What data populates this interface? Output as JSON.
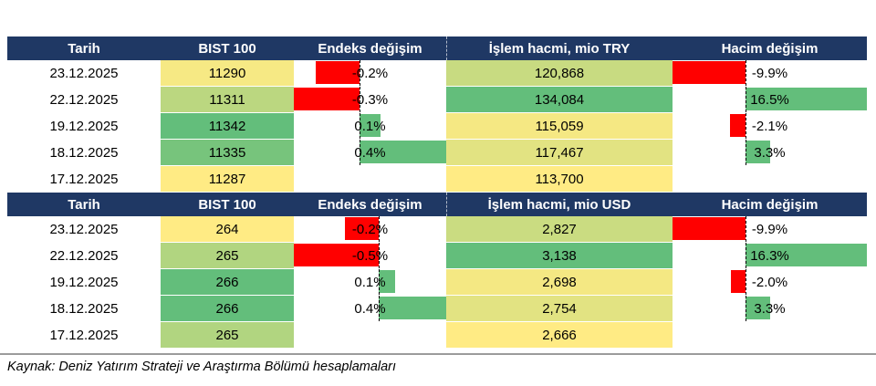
{
  "page": {
    "source_note": "Kaynak: Deniz Yatırım Strateji ve Araştırma Bölümü hesaplamaları"
  },
  "colors": {
    "header_bg": "#1F3864",
    "header_text": "#FFFFFF",
    "negative_bar": "#FF0000",
    "positive_bar": "#63BE7B",
    "scale_min": "#FFEB84",
    "scale_max": "#63BE7B",
    "axis_line": "#000000"
  },
  "chart_data": [
    {
      "type": "table",
      "columns": [
        "Tarih",
        "BIST 100",
        "Endeks değişim",
        "İşlem hacmi, mio TRY",
        "Hacim değişim"
      ],
      "conditional_formatting": {
        "bist": "color-scale yellow-to-green",
        "endeks": "data-bars red-negative green-positive with dashed zero axis",
        "hacim": "color-scale yellow-to-green",
        "hdeg": "data-bars red-negative green-positive with dashed zero axis"
      },
      "rows": [
        {
          "date": "23.12.2025",
          "bist": 11290,
          "bist_label": "11290",
          "endeks": -0.2,
          "endeks_label": "-0.2%",
          "hacim": 120868,
          "hacim_label": "120,868",
          "hdeg": -9.9,
          "hdeg_label": "-9.9%"
        },
        {
          "date": "22.12.2025",
          "bist": 11311,
          "bist_label": "11311",
          "endeks": -0.3,
          "endeks_label": "-0.3%",
          "hacim": 134084,
          "hacim_label": "134,084",
          "hdeg": 16.5,
          "hdeg_label": "16.5%"
        },
        {
          "date": "19.12.2025",
          "bist": 11342,
          "bist_label": "11342",
          "endeks": 0.1,
          "endeks_label": "0.1%",
          "hacim": 115059,
          "hacim_label": "115,059",
          "hdeg": -2.1,
          "hdeg_label": "-2.1%"
        },
        {
          "date": "18.12.2025",
          "bist": 11335,
          "bist_label": "11335",
          "endeks": 0.4,
          "endeks_label": "0.4%",
          "hacim": 117467,
          "hacim_label": "117,467",
          "hdeg": 3.3,
          "hdeg_label": "3.3%"
        },
        {
          "date": "17.12.2025",
          "bist": 11287,
          "bist_label": "11287",
          "endeks": null,
          "endeks_label": "",
          "hacim": 113700,
          "hacim_label": "113,700",
          "hdeg": null,
          "hdeg_label": ""
        }
      ]
    },
    {
      "type": "table",
      "columns": [
        "Tarih",
        "BIST 100",
        "Endeks değişim",
        "İşlem hacmi, mio USD",
        "Hacim değişim"
      ],
      "conditional_formatting": {
        "bist": "color-scale yellow-to-green",
        "endeks": "data-bars red-negative green-positive with dashed zero axis",
        "hacim": "color-scale yellow-to-green",
        "hdeg": "data-bars red-negative green-positive with dashed zero axis"
      },
      "rows": [
        {
          "date": "23.12.2025",
          "bist": 264,
          "bist_label": "264",
          "endeks": -0.2,
          "endeks_label": "-0.2%",
          "hacim": 2827,
          "hacim_label": "2,827",
          "hdeg": -9.9,
          "hdeg_label": "-9.9%"
        },
        {
          "date": "22.12.2025",
          "bist": 265,
          "bist_label": "265",
          "endeks": -0.5,
          "endeks_label": "-0.5%",
          "hacim": 3138,
          "hacim_label": "3,138",
          "hdeg": 16.3,
          "hdeg_label": "16.3%"
        },
        {
          "date": "19.12.2025",
          "bist": 266,
          "bist_label": "266",
          "endeks": 0.1,
          "endeks_label": "0.1%",
          "hacim": 2698,
          "hacim_label": "2,698",
          "hdeg": -2.0,
          "hdeg_label": "-2.0%"
        },
        {
          "date": "18.12.2025",
          "bist": 266,
          "bist_label": "266",
          "endeks": 0.4,
          "endeks_label": "0.4%",
          "hacim": 2754,
          "hacim_label": "2,754",
          "hdeg": 3.3,
          "hdeg_label": "3.3%"
        },
        {
          "date": "17.12.2025",
          "bist": 265,
          "bist_label": "265",
          "endeks": null,
          "endeks_label": "",
          "hacim": 2666,
          "hacim_label": "2,666",
          "hdeg": null,
          "hdeg_label": ""
        }
      ]
    }
  ]
}
